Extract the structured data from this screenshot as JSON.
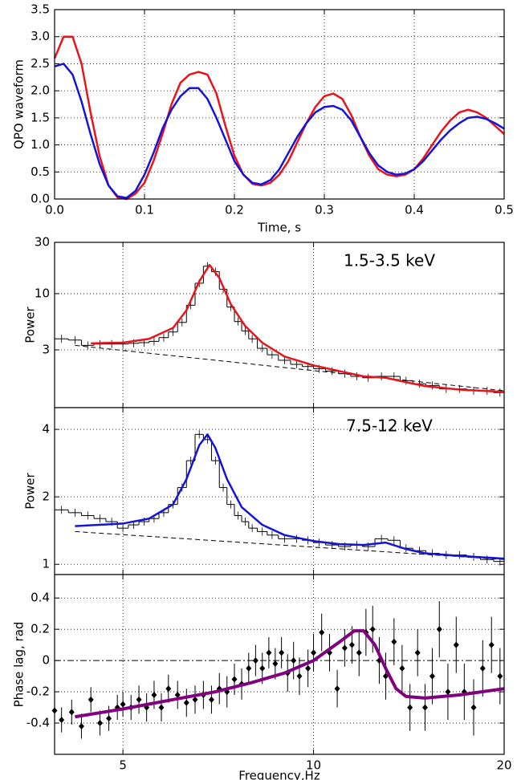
{
  "chart_data": [
    {
      "type": "line",
      "xlabel": "Time, s",
      "ylabel": "QPO waveform",
      "xlim": [
        0,
        0.5
      ],
      "ylim": [
        0,
        3.5
      ],
      "grid": true,
      "show_xtick_labels": true,
      "xticks": [
        {
          "value": 0,
          "label": "0.0"
        },
        0.1,
        0.2,
        0.3,
        0.4,
        0.5
      ],
      "yticks": [
        {
          "value": 0,
          "label": "0.0"
        },
        0.5,
        {
          "value": 1,
          "label": "1.0"
        },
        1.5,
        {
          "value": 2,
          "label": "2.0"
        },
        2.5,
        {
          "value": 3,
          "label": "3.0"
        },
        3.5
      ],
      "x": [
        0,
        0.01,
        0.02,
        0.03,
        0.04,
        0.05,
        0.06,
        0.07,
        0.08,
        0.09,
        0.1,
        0.11,
        0.12,
        0.13,
        0.14,
        0.15,
        0.16,
        0.17,
        0.18,
        0.19,
        0.2,
        0.21,
        0.22,
        0.23,
        0.24,
        0.25,
        0.26,
        0.27,
        0.28,
        0.29,
        0.3,
        0.31,
        0.32,
        0.33,
        0.34,
        0.35,
        0.36,
        0.37,
        0.38,
        0.39,
        0.4,
        0.41,
        0.42,
        0.43,
        0.44,
        0.45,
        0.46,
        0.47,
        0.48,
        0.49,
        0.5
      ],
      "series": [
        {
          "color": "#e8141c",
          "style": "line",
          "values": [
            2.6,
            3.0,
            3.0,
            2.5,
            1.6,
            0.8,
            0.25,
            0.03,
            0,
            0.1,
            0.3,
            0.7,
            1.2,
            1.75,
            2.15,
            2.3,
            2.35,
            2.3,
            1.95,
            1.35,
            0.8,
            0.45,
            0.28,
            0.25,
            0.3,
            0.45,
            0.7,
            1.05,
            1.4,
            1.7,
            1.9,
            1.95,
            1.85,
            1.55,
            1.15,
            0.8,
            0.55,
            0.45,
            0.42,
            0.45,
            0.55,
            0.75,
            1.0,
            1.25,
            1.45,
            1.6,
            1.65,
            1.6,
            1.5,
            1.35,
            1.2
          ]
        },
        {
          "color": "#1414d8",
          "style": "line",
          "values": [
            2.45,
            2.5,
            2.3,
            1.8,
            1.2,
            0.65,
            0.25,
            0.05,
            0.02,
            0.15,
            0.45,
            0.85,
            1.3,
            1.65,
            1.9,
            2.05,
            2.05,
            1.85,
            1.5,
            1.1,
            0.7,
            0.45,
            0.3,
            0.27,
            0.35,
            0.55,
            0.85,
            1.15,
            1.4,
            1.6,
            1.7,
            1.72,
            1.65,
            1.45,
            1.15,
            0.85,
            0.62,
            0.5,
            0.45,
            0.47,
            0.55,
            0.7,
            0.9,
            1.1,
            1.27,
            1.4,
            1.5,
            1.52,
            1.48,
            1.4,
            1.3
          ]
        }
      ]
    },
    {
      "type": "spectrum",
      "ylabel": "Power",
      "annotation": "1.5-3.5 keV",
      "xscale": "log",
      "yscale": "log",
      "xlim": [
        3.9,
        20
      ],
      "ylim": [
        0.87,
        30
      ],
      "grid": true,
      "show_xtick_labels": false,
      "xticks": [
        5,
        10,
        20
      ],
      "yticks": [
        3,
        10,
        30
      ],
      "series": [
        {
          "color": "#000000",
          "style": "steps",
          "x": [
            4.0,
            4.2,
            4.4,
            4.6,
            4.8,
            5.0,
            5.2,
            5.4,
            5.6,
            5.8,
            6.0,
            6.2,
            6.4,
            6.6,
            6.8,
            7.0,
            7.2,
            7.4,
            7.6,
            7.8,
            8.0,
            8.3,
            8.6,
            9.0,
            9.4,
            9.8,
            10.2,
            10.7,
            11.2,
            11.7,
            12.2,
            12.8,
            13.4,
            14.0,
            14.7,
            15.4,
            16.2,
            17.0,
            17.9,
            18.8,
            19.7
          ],
          "values": [
            3.8,
            3.7,
            3.3,
            3.4,
            3.4,
            3.4,
            3.45,
            3.5,
            3.6,
            3.9,
            4.4,
            5.4,
            7.8,
            12.5,
            18,
            16,
            11,
            7.5,
            5.5,
            4.5,
            3.8,
            3.1,
            2.7,
            2.4,
            2.2,
            2.1,
            2.0,
            1.9,
            1.8,
            1.7,
            1.65,
            1.7,
            1.7,
            1.55,
            1.45,
            1.4,
            1.3,
            1.3,
            1.25,
            1.25,
            1.2
          ]
        },
        {
          "color": "#000000",
          "style": "dashed",
          "x": [
            4.2,
            20
          ],
          "values": [
            3.3,
            1.25
          ]
        },
        {
          "color": "#e8141c",
          "style": "line",
          "x": [
            4.45,
            5,
            5.5,
            6.0,
            6.3,
            6.6,
            6.85,
            7.1,
            7.4,
            7.8,
            8.3,
            9,
            10,
            11,
            12,
            13,
            14,
            15,
            17,
            20
          ],
          "values": [
            3.45,
            3.5,
            3.8,
            4.8,
            7,
            13,
            18.5,
            14,
            8,
            5,
            3.5,
            2.6,
            2.15,
            1.9,
            1.7,
            1.65,
            1.5,
            1.38,
            1.28,
            1.22
          ]
        }
      ]
    },
    {
      "type": "spectrum",
      "ylabel": "Power",
      "annotation": "7.5-12 keV",
      "xscale": "log",
      "yscale": "log",
      "xlim": [
        3.9,
        20
      ],
      "ylim": [
        0.9,
        5
      ],
      "grid": true,
      "show_xtick_labels": false,
      "xticks": [
        5,
        10,
        20
      ],
      "yticks": [
        1,
        2,
        4
      ],
      "series": [
        {
          "color": "#000000",
          "style": "steps",
          "x": [
            4.0,
            4.2,
            4.4,
            4.6,
            4.8,
            5.0,
            5.2,
            5.4,
            5.6,
            5.8,
            6.0,
            6.2,
            6.4,
            6.6,
            6.8,
            7.0,
            7.2,
            7.4,
            7.6,
            7.8,
            8.0,
            8.3,
            8.6,
            9.0,
            9.4,
            9.8,
            10.2,
            10.7,
            11.2,
            11.7,
            12.2,
            12.8,
            13.4,
            14.0,
            14.7,
            15.4,
            16.2,
            17.0,
            17.9,
            18.8,
            19.7
          ],
          "values": [
            1.75,
            1.7,
            1.65,
            1.6,
            1.55,
            1.45,
            1.5,
            1.55,
            1.6,
            1.7,
            1.85,
            2.2,
            2.9,
            3.8,
            3.6,
            2.9,
            2.2,
            1.85,
            1.65,
            1.55,
            1.45,
            1.4,
            1.35,
            1.3,
            1.3,
            1.28,
            1.25,
            1.22,
            1.2,
            1.22,
            1.2,
            1.3,
            1.28,
            1.18,
            1.15,
            1.12,
            1.1,
            1.1,
            1.08,
            1.05,
            1.03
          ]
        },
        {
          "color": "#000000",
          "style": "dashed",
          "x": [
            4.2,
            20
          ],
          "values": [
            1.4,
            1.05
          ]
        },
        {
          "color": "#1414d8",
          "style": "line",
          "x": [
            4.2,
            5,
            5.5,
            6.0,
            6.3,
            6.6,
            6.8,
            7.0,
            7.3,
            7.7,
            8.3,
            9,
            10,
            11,
            12,
            13,
            14,
            15,
            17,
            20
          ],
          "values": [
            1.48,
            1.52,
            1.6,
            1.85,
            2.4,
            3.4,
            3.8,
            3.3,
            2.4,
            1.8,
            1.5,
            1.35,
            1.27,
            1.23,
            1.22,
            1.25,
            1.17,
            1.12,
            1.09,
            1.06
          ]
        }
      ]
    },
    {
      "type": "spectrum",
      "xlabel": "Frequency,Hz",
      "ylabel": "Phase lag, rad",
      "xscale": "log",
      "xlim": [
        3.9,
        20
      ],
      "ylim": [
        -0.6,
        0.55
      ],
      "grid": true,
      "show_xtick_labels": true,
      "hline": 0,
      "xticks": [
        5,
        10,
        20
      ],
      "yticks": [
        -0.4,
        -0.2,
        0,
        0.2,
        0.4
      ],
      "series": [
        {
          "color": "#000000",
          "style": "points",
          "x": [
            3.9,
            4.0,
            4.15,
            4.3,
            4.45,
            4.6,
            4.75,
            4.9,
            5.0,
            5.15,
            5.3,
            5.45,
            5.6,
            5.75,
            5.9,
            6.1,
            6.3,
            6.5,
            6.7,
            6.9,
            7.1,
            7.3,
            7.5,
            7.7,
            7.9,
            8.1,
            8.3,
            8.5,
            8.7,
            8.9,
            9.1,
            9.3,
            9.5,
            9.8,
            10.0,
            10.3,
            10.6,
            10.9,
            11.2,
            11.5,
            11.8,
            12.1,
            12.4,
            12.7,
            13.0,
            13.4,
            13.8,
            14.2,
            14.6,
            15.0,
            15.4,
            15.8,
            16.3,
            16.8,
            17.3,
            17.9,
            18.5,
            19.1,
            19.7
          ],
          "values": [
            -0.32,
            -0.38,
            -0.33,
            -0.42,
            -0.25,
            -0.4,
            -0.37,
            -0.3,
            -0.28,
            -0.3,
            -0.25,
            -0.3,
            -0.22,
            -0.3,
            -0.18,
            -0.22,
            -0.27,
            -0.25,
            -0.22,
            -0.25,
            -0.18,
            -0.2,
            -0.12,
            -0.15,
            -0.05,
            0,
            -0.05,
            0.05,
            -0.02,
            0.05,
            -0.08,
            0,
            -0.1,
            -0.05,
            0.05,
            0.18,
            0.05,
            -0.18,
            0.08,
            0.1,
            0.05,
            0.18,
            0.2,
            0,
            -0.1,
            0.12,
            -0.05,
            -0.3,
            0.05,
            -0.3,
            -0.1,
            0.2,
            -0.2,
            0.1,
            -0.2,
            -0.3,
            -0.05,
            0.1,
            -0.1
          ],
          "errors": [
            0.08,
            0.08,
            0.08,
            0.08,
            0.08,
            0.08,
            0.08,
            0.08,
            0.08,
            0.08,
            0.09,
            0.09,
            0.09,
            0.09,
            0.09,
            0.09,
            0.09,
            0.09,
            0.09,
            0.09,
            0.1,
            0.1,
            0.1,
            0.1,
            0.1,
            0.1,
            0.1,
            0.1,
            0.1,
            0.1,
            0.12,
            0.12,
            0.12,
            0.12,
            0.12,
            0.12,
            0.12,
            0.12,
            0.12,
            0.12,
            0.15,
            0.15,
            0.15,
            0.15,
            0.15,
            0.15,
            0.15,
            0.15,
            0.15,
            0.15,
            0.18,
            0.18,
            0.18,
            0.18,
            0.18,
            0.18,
            0.18,
            0.18,
            0.18
          ]
        },
        {
          "color": "#800080",
          "style": "thick",
          "x": [
            4.2,
            5,
            6,
            7,
            8,
            9,
            10,
            11,
            11.6,
            12,
            12.5,
            13,
            13.5,
            14,
            15,
            17,
            20
          ],
          "values": [
            -0.36,
            -0.31,
            -0.25,
            -0.2,
            -0.14,
            -0.08,
            0,
            0.12,
            0.19,
            0.19,
            0.1,
            -0.05,
            -0.18,
            -0.23,
            -0.24,
            -0.22,
            -0.18
          ]
        }
      ]
    }
  ]
}
